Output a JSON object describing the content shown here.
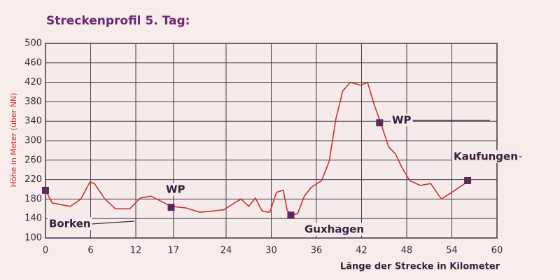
{
  "chart_data": {
    "type": "line",
    "title": "Streckenprofil 5. Tag:",
    "x_label": "Länge der Strecke in Kilometer",
    "y_label": "Höhe in Meter (über NN)",
    "xlim": [
      0,
      60
    ],
    "ylim": [
      100,
      500
    ],
    "xticks": [
      0,
      6,
      12,
      17,
      24,
      30,
      36,
      42,
      48,
      54,
      60
    ],
    "yticks": [
      100,
      140,
      180,
      220,
      260,
      300,
      340,
      380,
      420,
      460,
      500
    ],
    "grid": true,
    "series": [
      {
        "color": "#c8332e",
        "x": [
          0,
          0.9,
          3.3,
          4.7,
          5.9,
          6.5,
          7.9,
          9.3,
          11.2,
          12.6,
          14,
          15.3,
          16.7,
          18.6,
          20.5,
          21.9,
          23.7,
          25.1,
          26,
          27,
          27.9,
          28.8,
          29.8,
          30.7,
          31.6,
          32.1,
          32.6,
          33.5,
          34.4,
          35.3,
          36.7,
          37.7,
          38.6,
          39.5,
          40.5,
          41.9,
          42.8,
          43.7,
          44.7,
          45.6,
          46.5,
          47.4,
          48.4,
          49.8,
          51.2,
          52.6,
          54,
          56.3
        ],
        "values": [
          198,
          172,
          165,
          180,
          215,
          212,
          180,
          160,
          160,
          182,
          186,
          176,
          165,
          162,
          153,
          155,
          158,
          172,
          180,
          165,
          182,
          155,
          153,
          194,
          198,
          158,
          146,
          150,
          186,
          204,
          218,
          258,
          345,
          402,
          420,
          414,
          420,
          373,
          330,
          287,
          273,
          244,
          218,
          208,
          212,
          180,
          194,
          218
        ]
      }
    ],
    "markers": {
      "color": "#5a2a5a",
      "x": [
        0,
        16.7,
        32.6,
        44.4,
        56.1
      ],
      "values": [
        198,
        163,
        147,
        337,
        218
      ]
    },
    "annotations": [
      "Borken",
      "WP",
      "Guxhagen",
      "WP",
      "Kaufungen"
    ]
  }
}
